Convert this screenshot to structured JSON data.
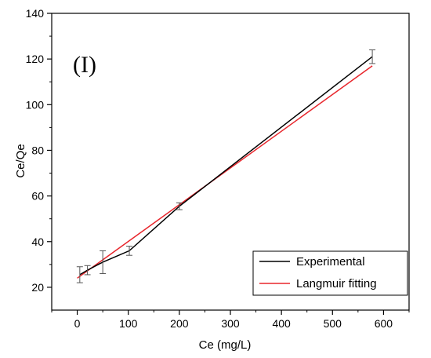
{
  "chart_data": {
    "type": "line",
    "panel_label": "(I)",
    "xlabel": "Ce (mg/L)",
    "ylabel": "Ce/Qe",
    "xlim": [
      -50,
      650
    ],
    "ylim": [
      10,
      140
    ],
    "x_ticks": [
      0,
      100,
      200,
      300,
      400,
      500,
      600
    ],
    "y_ticks": [
      20,
      40,
      60,
      80,
      100,
      120,
      140
    ],
    "grid": false,
    "legend_position": "bottom-right",
    "series": [
      {
        "name": "Experimental",
        "color": "#000000",
        "x": [
          5,
          20,
          50,
          102,
          200,
          578
        ],
        "y": [
          25.5,
          27.5,
          31,
          36,
          55.5,
          121
        ],
        "error": [
          3.5,
          2,
          5,
          2,
          1.5,
          3
        ]
      },
      {
        "name": "Langmuir fitting",
        "color": "#e8262c",
        "x": [
          0,
          578
        ],
        "y": [
          24,
          117
        ]
      }
    ]
  }
}
